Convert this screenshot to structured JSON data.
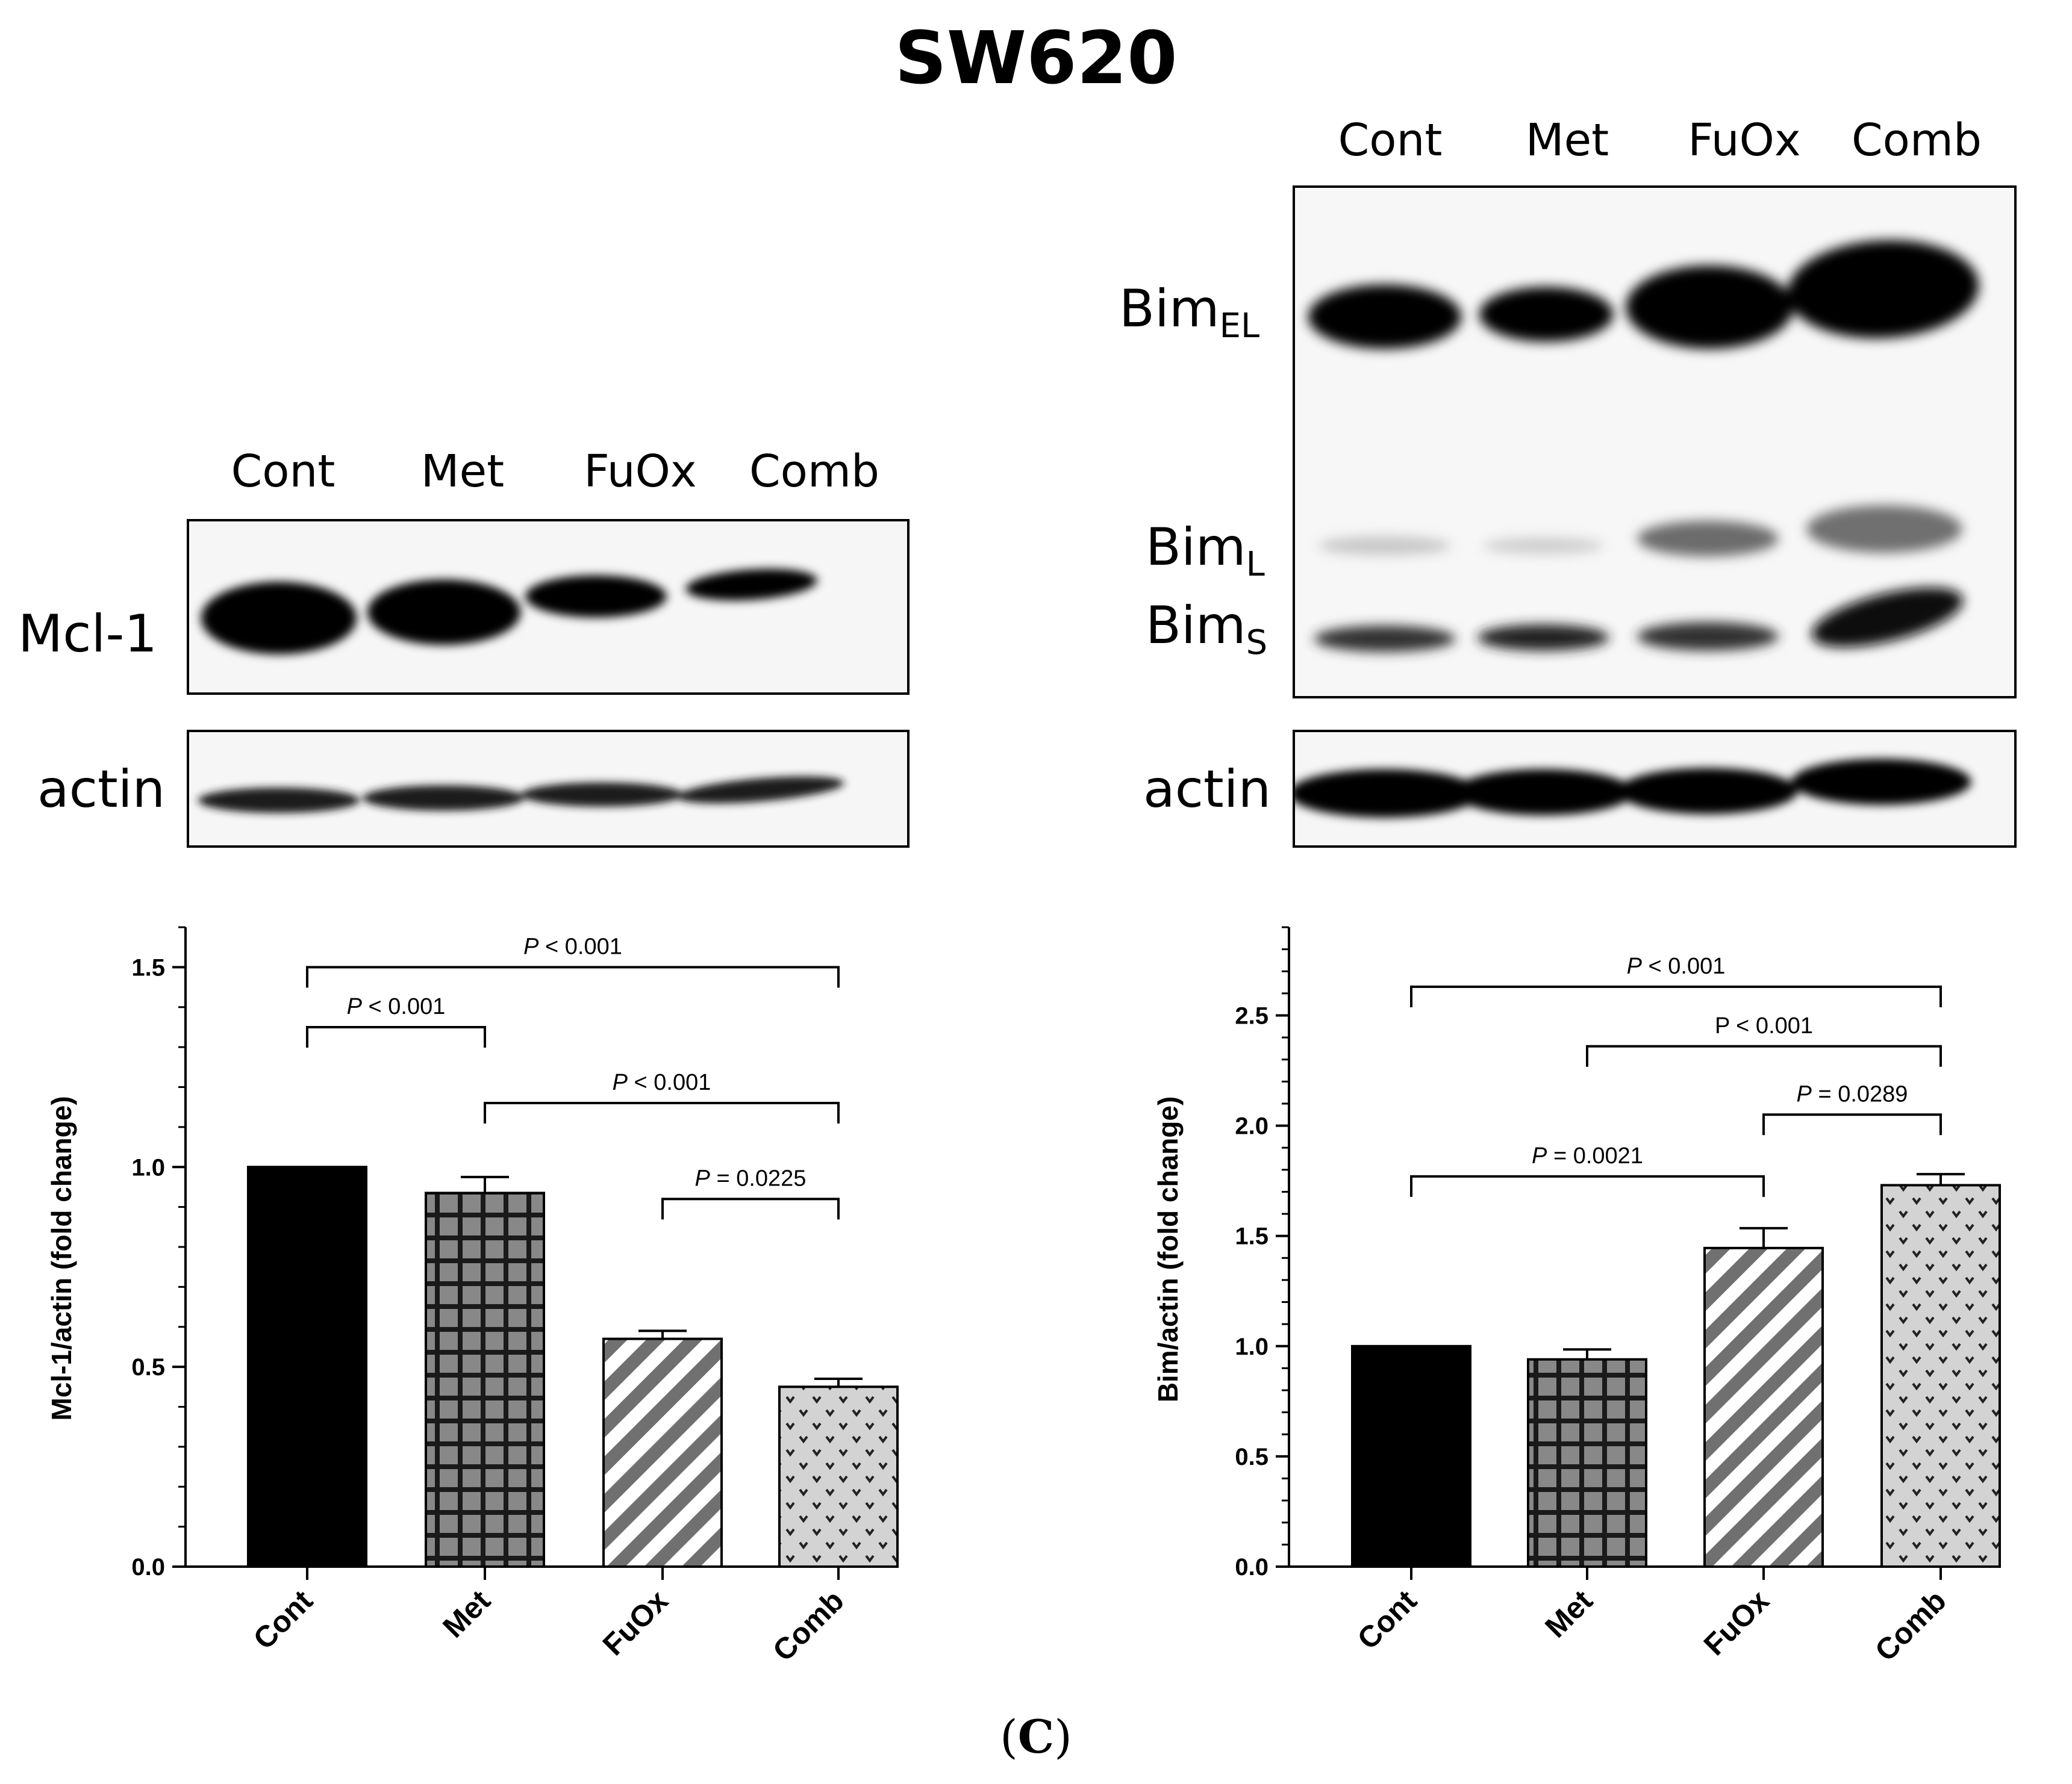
{
  "figure_title": "SW620",
  "panel_caption": {
    "open": "(",
    "letter": "C",
    "close": ")"
  },
  "colors": {
    "bar_cont": "#000000",
    "bar_pattern_fill": "#888888",
    "bar_comb_fill": "#d3d3d3"
  },
  "western_blots": [
    {
      "lanes": [
        "Cont",
        "Met",
        "FuOx",
        "Comb"
      ],
      "bands": [
        {
          "label": "Mcl-1"
        },
        {
          "label": "actin"
        }
      ]
    },
    {
      "lanes": [
        "Cont",
        "Met",
        "FuOx",
        "Comb"
      ],
      "bands": [
        {
          "label": "Bim",
          "sub": "EL"
        },
        {
          "label": "Bim",
          "sub": "L"
        },
        {
          "label": "Bim",
          "sub": "S"
        },
        {
          "label": "actin"
        }
      ]
    }
  ],
  "chart_data": [
    {
      "type": "bar",
      "categories": [
        "Cont",
        "Met",
        "FuOx",
        "Comb"
      ],
      "values": [
        1.0,
        0.935,
        0.57,
        0.45
      ],
      "errors": [
        0.0,
        0.04,
        0.02,
        0.02
      ],
      "patterns": [
        "solid",
        "grid",
        "diagonal",
        "dots"
      ],
      "ylabel": "Mcl-1/actin (fold change)",
      "ylim": [
        0,
        1.6
      ],
      "yticks": [
        0.0,
        0.5,
        1.0,
        1.5
      ],
      "ytick_labels": [
        "0.0",
        "0.5",
        "1.0",
        "1.5"
      ],
      "grid": false,
      "comparisons": [
        {
          "from": 0,
          "to": 3,
          "y": 1.5,
          "p_prefix": "P",
          "p_text": " < 0.001"
        },
        {
          "from": 0,
          "to": 1,
          "y": 1.35,
          "p_prefix": "P",
          "p_text": " < 0.001"
        },
        {
          "from": 1,
          "to": 3,
          "y": 1.16,
          "p_prefix": "P",
          "p_text": " < 0.001"
        },
        {
          "from": 2,
          "to": 3,
          "y": 0.92,
          "p_prefix": "P",
          "p_text": " = 0.0225"
        }
      ]
    },
    {
      "type": "bar",
      "categories": [
        "Cont",
        "Met",
        "FuOx",
        "Comb"
      ],
      "values": [
        1.0,
        0.94,
        1.445,
        1.73
      ],
      "errors": [
        0.0,
        0.045,
        0.09,
        0.05
      ],
      "patterns": [
        "solid",
        "grid",
        "diagonal",
        "dots"
      ],
      "ylabel": "Bim/actin (fold change)",
      "ylim": [
        0,
        2.9
      ],
      "yticks": [
        0.0,
        0.5,
        1.0,
        1.5,
        2.0,
        2.5
      ],
      "ytick_labels": [
        "0.0",
        "0.5",
        "1.0",
        "1.5",
        "2.0",
        "2.5"
      ],
      "grid": false,
      "comparisons": [
        {
          "from": 0,
          "to": 3,
          "y": 2.63,
          "p_prefix": "P",
          "p_text": " < 0.001"
        },
        {
          "from": 1,
          "to": 3,
          "y": 2.36,
          "p_prefix": "",
          "p_text": "P < 0.001"
        },
        {
          "from": 2,
          "to": 3,
          "y": 2.05,
          "p_prefix": "P",
          "p_text": " = 0.0289"
        },
        {
          "from": 0,
          "to": 2,
          "y": 1.77,
          "p_prefix": "P",
          "p_text": " = 0.0021"
        }
      ]
    }
  ]
}
